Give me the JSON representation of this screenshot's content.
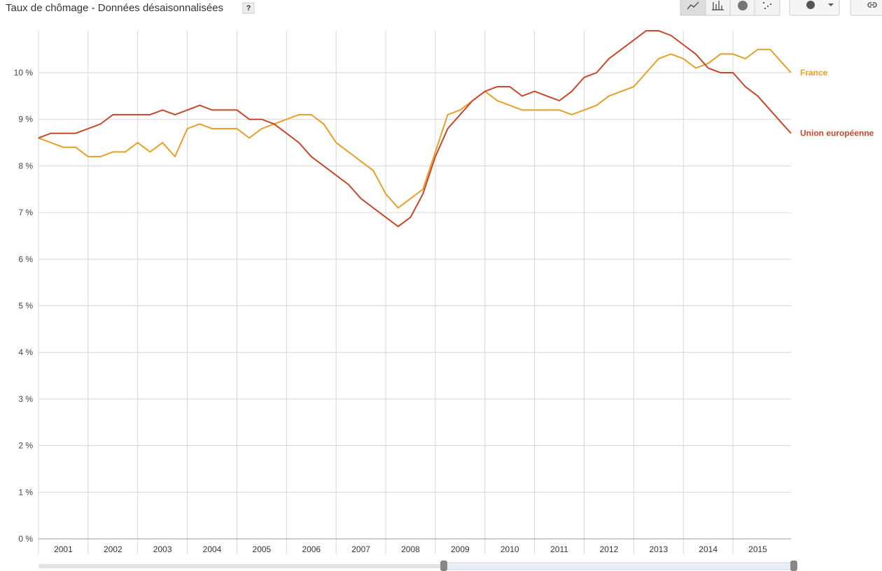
{
  "chart_data": {
    "type": "line",
    "title": "Taux de chômage - Données désaisonnalisées",
    "help": "?",
    "x": [
      2001,
      2001.25,
      2001.5,
      2001.75,
      2002,
      2002.25,
      2002.5,
      2002.75,
      2003,
      2003.25,
      2003.5,
      2003.75,
      2004,
      2004.25,
      2004.5,
      2004.75,
      2005,
      2005.25,
      2005.5,
      2005.75,
      2006,
      2006.25,
      2006.5,
      2006.75,
      2007,
      2007.25,
      2007.5,
      2007.75,
      2008,
      2008.25,
      2008.5,
      2008.75,
      2009,
      2009.25,
      2009.5,
      2009.75,
      2010,
      2010.25,
      2010.5,
      2010.75,
      2011,
      2011.25,
      2011.5,
      2011.75,
      2012,
      2012.25,
      2012.5,
      2012.75,
      2013,
      2013.25,
      2013.5,
      2013.75,
      2014,
      2014.25,
      2014.5,
      2014.75,
      2015,
      2015.25,
      2015.5,
      2015.75,
      2016,
      2016.17
    ],
    "series": [
      {
        "name": "France",
        "color": "#e69f27",
        "values": [
          8.6,
          8.5,
          8.4,
          8.4,
          8.2,
          8.2,
          8.3,
          8.3,
          8.5,
          8.3,
          8.5,
          8.2,
          8.8,
          8.9,
          8.8,
          8.8,
          8.8,
          8.6,
          8.8,
          8.9,
          9.0,
          9.1,
          9.1,
          8.9,
          8.5,
          8.3,
          8.1,
          7.9,
          7.4,
          7.1,
          7.3,
          7.5,
          8.3,
          9.1,
          9.2,
          9.4,
          9.6,
          9.4,
          9.3,
          9.2,
          9.2,
          9.2,
          9.2,
          9.1,
          9.2,
          9.3,
          9.5,
          9.6,
          9.7,
          10.0,
          10.3,
          10.4,
          10.3,
          10.1,
          10.2,
          10.4,
          10.4,
          10.3,
          10.5,
          10.5,
          10.2,
          10.0
        ]
      },
      {
        "name": "Union européenne",
        "color": "#c8472b",
        "values": [
          8.6,
          8.7,
          8.7,
          8.7,
          8.8,
          8.9,
          9.1,
          9.1,
          9.1,
          9.1,
          9.2,
          9.1,
          9.2,
          9.3,
          9.2,
          9.2,
          9.2,
          9.0,
          9.0,
          8.9,
          8.7,
          8.5,
          8.2,
          8.0,
          7.8,
          7.6,
          7.3,
          7.1,
          6.9,
          6.7,
          6.9,
          7.4,
          8.2,
          8.8,
          9.1,
          9.4,
          9.6,
          9.7,
          9.7,
          9.5,
          9.6,
          9.5,
          9.4,
          9.6,
          9.9,
          10.0,
          10.3,
          10.5,
          10.7,
          10.9,
          10.9,
          10.8,
          10.6,
          10.4,
          10.1,
          10.0,
          10.0,
          9.7,
          9.5,
          9.2,
          8.9,
          8.7
        ]
      }
    ],
    "xlim": [
      2001,
      2016.17
    ],
    "xticks": [
      2001,
      2002,
      2003,
      2004,
      2005,
      2006,
      2007,
      2008,
      2009,
      2010,
      2011,
      2012,
      2013,
      2014,
      2015
    ],
    "ylim": [
      0,
      10.9
    ],
    "yticks": [
      {
        "value": 0,
        "label": "0 %"
      },
      {
        "value": 1,
        "label": "1 %"
      },
      {
        "value": 2,
        "label": "2 %"
      },
      {
        "value": 3,
        "label": "3 %"
      },
      {
        "value": 4,
        "label": "4 %"
      },
      {
        "value": 5,
        "label": "5 %"
      },
      {
        "value": 6,
        "label": "6 %"
      },
      {
        "value": 7,
        "label": "7 %"
      },
      {
        "value": 8,
        "label": "8 %"
      },
      {
        "value": 9,
        "label": "9 %"
      },
      {
        "value": 10,
        "label": "10 %"
      }
    ],
    "grid": true
  }
}
